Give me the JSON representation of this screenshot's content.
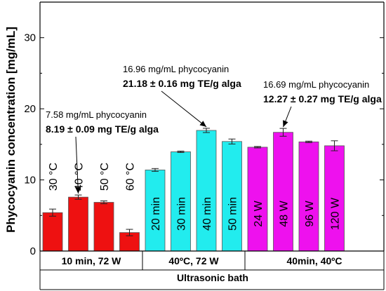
{
  "chart_data": {
    "type": "bar",
    "ylabel": "Phycocyanin concentration [mg/mL]",
    "xlabel": "Ultrasonic bath",
    "ylim": [
      0,
      35
    ],
    "yticks": [
      0,
      10,
      20,
      30
    ],
    "groups": [
      {
        "label": "10 min, 72 W",
        "color": "#ee1111",
        "bars": [
          {
            "label": "30 °C",
            "value": 5.4,
            "error": 0.5
          },
          {
            "label": "40 °C",
            "value": 7.58,
            "error": 0.3
          },
          {
            "label": "50 °C",
            "value": 6.85,
            "error": 0.2
          },
          {
            "label": "60 °C",
            "value": 2.6,
            "error": 0.45
          }
        ]
      },
      {
        "label": "40ºC, 72 W",
        "color": "#22ecee",
        "bars": [
          {
            "label": "20 min",
            "value": 11.4,
            "error": 0.2
          },
          {
            "label": "30 min",
            "value": 13.95,
            "error": 0.1
          },
          {
            "label": "40 min",
            "value": 16.96,
            "error": 0.3
          },
          {
            "label": "50 min",
            "value": 15.4,
            "error": 0.35
          }
        ]
      },
      {
        "label": "40min, 40ºC",
        "color": "#ee11ee",
        "bars": [
          {
            "label": "24 W",
            "value": 14.6,
            "error": 0.1
          },
          {
            "label": "48 W",
            "value": 16.69,
            "error": 0.55
          },
          {
            "label": "96 W",
            "value": 15.35,
            "error": 0.1
          },
          {
            "label": "120 W",
            "value": 14.8,
            "error": 0.7
          }
        ]
      }
    ],
    "annotations": [
      {
        "line1": "7.58 mg/mL phycocyanin",
        "line2": "8.19 ± 0.09 mg TE/g alga",
        "group": 0,
        "bar": 1
      },
      {
        "line1": "16.96 mg/mL phycocyanin",
        "line2": "21.18 ± 0.16 mg TE/g alga",
        "group": 1,
        "bar": 2
      },
      {
        "line1": "16.69 mg/mL phycocyanin",
        "line2": "12.27 ± 0.27 mg TE/g alga",
        "group": 2,
        "bar": 1
      }
    ]
  }
}
